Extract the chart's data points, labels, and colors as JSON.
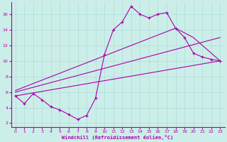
{
  "xlabel": "Windchill (Refroidissement éolien,°C)",
  "bg_color": "#cceee8",
  "grid_color": "#aadddd",
  "line_color": "#aa00aa",
  "xlim": [
    -0.5,
    23.5
  ],
  "ylim": [
    1.5,
    17.5
  ],
  "xticks": [
    0,
    1,
    2,
    3,
    4,
    5,
    6,
    7,
    8,
    9,
    10,
    11,
    12,
    13,
    14,
    15,
    16,
    17,
    18,
    19,
    20,
    21,
    22,
    23
  ],
  "yticks": [
    2,
    4,
    6,
    8,
    10,
    12,
    14,
    16
  ],
  "line1_x": [
    0,
    1,
    2,
    3,
    4,
    5,
    6,
    7,
    8,
    9,
    10,
    11,
    12,
    13,
    14,
    15,
    16,
    17,
    18,
    19,
    20,
    21,
    22,
    23
  ],
  "line1_y": [
    5.5,
    4.5,
    5.8,
    5.0,
    4.1,
    3.7,
    3.1,
    2.5,
    3.0,
    5.2,
    10.8,
    14.0,
    15.0,
    17.0,
    16.0,
    15.5,
    16.0,
    16.2,
    14.2,
    13.0,
    11.0,
    10.5,
    10.2,
    10.0
  ],
  "line2_x": [
    0,
    23
  ],
  "line2_y": [
    5.5,
    10.0
  ],
  "line3_x": [
    0,
    23
  ],
  "line3_y": [
    6.0,
    13.0
  ],
  "line4_x": [
    0,
    18,
    20,
    23
  ],
  "line4_y": [
    6.2,
    14.2,
    13.0,
    10.0
  ]
}
